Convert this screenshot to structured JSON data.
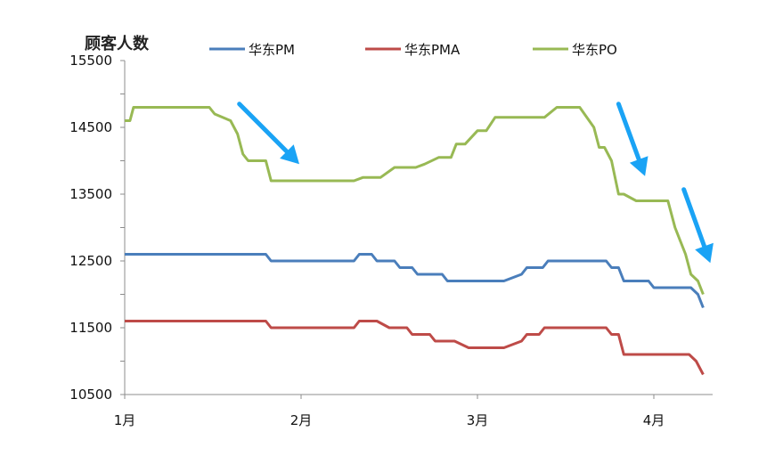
{
  "chart_data": {
    "type": "line",
    "ylabel": "顾客人数",
    "ylim": [
      10500,
      15500
    ],
    "yticks": [
      "15500",
      "14500",
      "13500",
      "12500",
      "11500",
      "10500"
    ],
    "xticks": [
      "1月",
      "2月",
      "3月",
      "4月"
    ],
    "xlim": [
      1,
      4.3
    ],
    "legend_position": "top",
    "grid": false,
    "series": [
      {
        "name": "华东PM",
        "color": "#4a7ebb",
        "points": [
          [
            1.0,
            12600
          ],
          [
            1.8,
            12600
          ],
          [
            1.83,
            12500
          ],
          [
            2.3,
            12500
          ],
          [
            2.33,
            12600
          ],
          [
            2.4,
            12600
          ],
          [
            2.43,
            12500
          ],
          [
            2.53,
            12500
          ],
          [
            2.56,
            12400
          ],
          [
            2.63,
            12400
          ],
          [
            2.66,
            12300
          ],
          [
            2.8,
            12300
          ],
          [
            2.83,
            12200
          ],
          [
            3.15,
            12200
          ],
          [
            3.25,
            12300
          ],
          [
            3.28,
            12400
          ],
          [
            3.37,
            12400
          ],
          [
            3.4,
            12500
          ],
          [
            3.73,
            12500
          ],
          [
            3.76,
            12400
          ],
          [
            3.8,
            12400
          ],
          [
            3.83,
            12200
          ],
          [
            3.97,
            12200
          ],
          [
            4.0,
            12100
          ],
          [
            4.21,
            12100
          ],
          [
            4.25,
            12000
          ],
          [
            4.28,
            11800
          ]
        ]
      },
      {
        "name": "华东PMA",
        "color": "#be4b48",
        "points": [
          [
            1.0,
            11600
          ],
          [
            1.8,
            11600
          ],
          [
            1.83,
            11500
          ],
          [
            2.3,
            11500
          ],
          [
            2.33,
            11600
          ],
          [
            2.43,
            11600
          ],
          [
            2.5,
            11500
          ],
          [
            2.6,
            11500
          ],
          [
            2.63,
            11400
          ],
          [
            2.73,
            11400
          ],
          [
            2.76,
            11300
          ],
          [
            2.87,
            11300
          ],
          [
            2.95,
            11200
          ],
          [
            3.15,
            11200
          ],
          [
            3.25,
            11300
          ],
          [
            3.28,
            11400
          ],
          [
            3.35,
            11400
          ],
          [
            3.38,
            11500
          ],
          [
            3.73,
            11500
          ],
          [
            3.76,
            11400
          ],
          [
            3.8,
            11400
          ],
          [
            3.83,
            11100
          ],
          [
            4.2,
            11100
          ],
          [
            4.24,
            11000
          ],
          [
            4.28,
            10800
          ]
        ]
      },
      {
        "name": "华东PO",
        "color": "#98b954",
        "points": [
          [
            1.0,
            14600
          ],
          [
            1.03,
            14600
          ],
          [
            1.05,
            14800
          ],
          [
            1.48,
            14800
          ],
          [
            1.51,
            14700
          ],
          [
            1.6,
            14600
          ],
          [
            1.64,
            14400
          ],
          [
            1.67,
            14100
          ],
          [
            1.7,
            14000
          ],
          [
            1.8,
            14000
          ],
          [
            1.83,
            13700
          ],
          [
            2.3,
            13700
          ],
          [
            2.35,
            13750
          ],
          [
            2.45,
            13750
          ],
          [
            2.53,
            13900
          ],
          [
            2.65,
            13900
          ],
          [
            2.7,
            13950
          ],
          [
            2.78,
            14050
          ],
          [
            2.85,
            14050
          ],
          [
            2.88,
            14250
          ],
          [
            2.93,
            14250
          ],
          [
            3.0,
            14450
          ],
          [
            3.05,
            14450
          ],
          [
            3.1,
            14650
          ],
          [
            3.38,
            14650
          ],
          [
            3.45,
            14800
          ],
          [
            3.58,
            14800
          ],
          [
            3.66,
            14500
          ],
          [
            3.69,
            14200
          ],
          [
            3.72,
            14200
          ],
          [
            3.76,
            14000
          ],
          [
            3.8,
            13500
          ],
          [
            3.83,
            13500
          ],
          [
            3.9,
            13400
          ],
          [
            4.08,
            13400
          ],
          [
            4.12,
            13000
          ],
          [
            4.18,
            12600
          ],
          [
            4.21,
            12300
          ],
          [
            4.25,
            12200
          ],
          [
            4.28,
            12000
          ]
        ]
      }
    ],
    "annotations": [
      {
        "type": "arrow",
        "color": "#1aa3f5",
        "from": [
          1.65,
          14850
        ],
        "to": [
          1.99,
          13950
        ]
      },
      {
        "type": "arrow",
        "color": "#1aa3f5",
        "from": [
          3.8,
          14850
        ],
        "to": [
          3.95,
          13770
        ]
      },
      {
        "type": "arrow",
        "color": "#1aa3f5",
        "from": [
          4.17,
          13570
        ],
        "to": [
          4.32,
          12470
        ]
      }
    ]
  }
}
